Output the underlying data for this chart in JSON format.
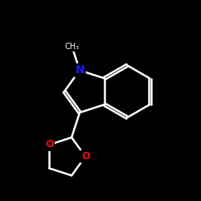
{
  "background_color": "#000000",
  "bond_color": "#ffffff",
  "N_color": "#1a1aff",
  "O_color": "#ff0000",
  "bond_width": 1.8,
  "font_size": 10,
  "figsize": [
    2.5,
    2.5
  ],
  "dpi": 100,
  "xlim": [
    0,
    10
  ],
  "ylim": [
    0,
    10
  ]
}
